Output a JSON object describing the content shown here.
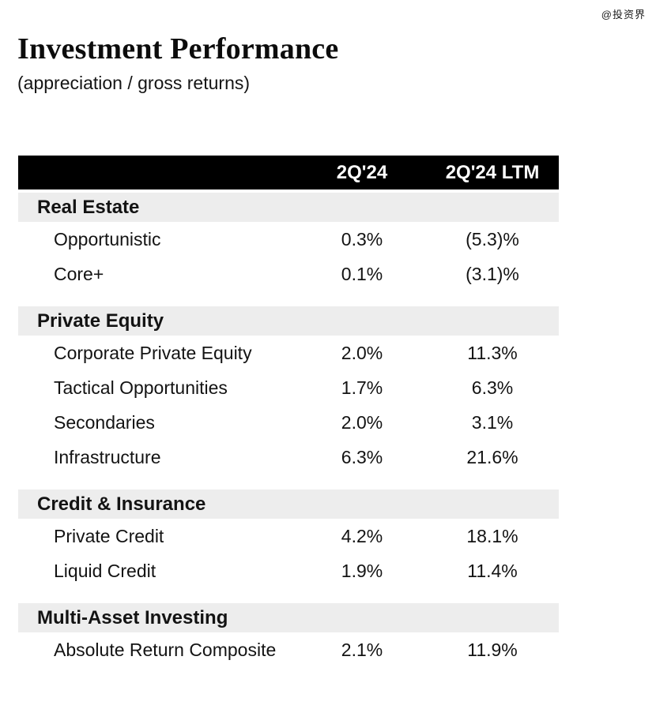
{
  "watermark": "@投资界",
  "title": "Investment Performance",
  "subtitle": "(appreciation / gross returns)",
  "colors": {
    "header_bg": "#000000",
    "header_text": "#ffffff",
    "section_bg": "#ededed",
    "body_text": "#131313"
  },
  "table": {
    "columns": [
      "2Q'24",
      "2Q'24 LTM"
    ],
    "sections": [
      {
        "name": "Real Estate",
        "rows": [
          {
            "label": "Opportunistic",
            "q": "0.3%",
            "ltm": "(5.3)%"
          },
          {
            "label": "Core+",
            "q": "0.1%",
            "ltm": "(3.1)%"
          }
        ]
      },
      {
        "name": "Private Equity",
        "rows": [
          {
            "label": "Corporate Private Equity",
            "q": "2.0%",
            "ltm": "11.3%"
          },
          {
            "label": "Tactical Opportunities",
            "q": "1.7%",
            "ltm": "6.3%"
          },
          {
            "label": "Secondaries",
            "q": "2.0%",
            "ltm": "3.1%"
          },
          {
            "label": "Infrastructure",
            "q": "6.3%",
            "ltm": "21.6%"
          }
        ]
      },
      {
        "name": "Credit & Insurance",
        "rows": [
          {
            "label": "Private Credit",
            "q": "4.2%",
            "ltm": "18.1%"
          },
          {
            "label": "Liquid Credit",
            "q": "1.9%",
            "ltm": "11.4%"
          }
        ]
      },
      {
        "name": "Multi-Asset Investing",
        "rows": [
          {
            "label": "Absolute Return Composite",
            "q": "2.1%",
            "ltm": "11.9%"
          }
        ]
      }
    ]
  }
}
